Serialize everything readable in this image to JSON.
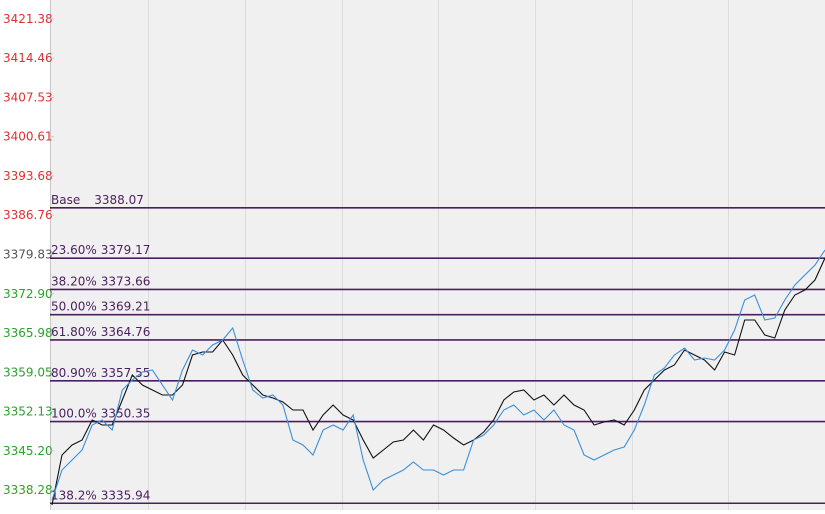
{
  "chart_data": {
    "type": "line",
    "ylim": [
      3334.75,
      3424.73
    ],
    "yticks": [
      3421.38,
      3414.46,
      3407.53,
      3400.61,
      3393.68,
      3386.76,
      3379.83,
      {
        "value": 3372.9,
        "label": "3372.90"
      },
      3365.98,
      3359.05,
      3352.13,
      {
        "value": 3345.2,
        "label": "3345.20"
      },
      3338.28
    ],
    "ytick_colors": [
      "#e03030",
      "#e03030",
      "#e03030",
      "#e03030",
      "#e03030",
      "#e03030",
      "#555555",
      "#2ca02c",
      "#2ca02c",
      "#2ca02c",
      "#2ca02c",
      "#2ca02c",
      "#2ca02c"
    ],
    "grid": true,
    "levels": [
      {
        "name": "Base",
        "value": 3388.07
      },
      {
        "name": "23.60%",
        "value": 3379.17
      },
      {
        "name": "38.20%",
        "value": 3373.66
      },
      {
        "name": "50.00%",
        "value": 3369.21
      },
      {
        "name": "61.80%",
        "value": 3364.76
      },
      {
        "name": "80.90%",
        "value": 3357.55
      },
      {
        "name": "100.0%",
        "value": 3350.35
      },
      {
        "name": "138.2%",
        "value": 3335.94
      }
    ],
    "level_color": "#4b1f5e",
    "series": [
      {
        "color": "#111111",
        "values": [
          3335.63,
          3344.45,
          3346.22,
          3347.1,
          3350.63,
          3349.75,
          3349.75,
          3354.16,
          3358.57,
          3356.8,
          3355.92,
          3355.04,
          3355.04,
          3356.8,
          3362.1,
          3362.63,
          3362.63,
          3364.74,
          3362.1,
          3358.57,
          3356.8,
          3355.04,
          3354.51,
          3353.81,
          3352.39,
          3352.39,
          3348.87,
          3351.51,
          3353.28,
          3351.51,
          3350.63,
          3347.1,
          3343.93,
          3345.34,
          3346.75,
          3347.1,
          3348.87,
          3347.1,
          3349.75,
          3348.87,
          3347.45,
          3346.22,
          3347.1,
          3348.51,
          3350.63,
          3354.16,
          3355.57,
          3355.92,
          3354.16,
          3355.04,
          3353.28,
          3355.04,
          3353.28,
          3352.39,
          3349.75,
          3350.28,
          3350.63,
          3349.75,
          3352.39,
          3355.92,
          3357.69,
          3359.45,
          3360.33,
          3362.98,
          3362.1,
          3361.22,
          3359.45,
          3362.63,
          3362.1,
          3368.27,
          3368.27,
          3365.63,
          3365.1,
          3370.04,
          3372.68,
          3373.57,
          3375.33,
          3379.21
        ]
      },
      {
        "color": "#3a8fd9",
        "values": [
          3336.51,
          3341.81,
          3343.57,
          3345.34,
          3349.75,
          3350.63,
          3348.87,
          3355.92,
          3357.69,
          3359.1,
          3359.45,
          3356.8,
          3354.16,
          3359.45,
          3362.98,
          3362.1,
          3363.86,
          3364.74,
          3366.86,
          3361.22,
          3355.92,
          3354.51,
          3355.04,
          3353.28,
          3347.1,
          3346.22,
          3344.45,
          3348.87,
          3349.75,
          3348.87,
          3351.51,
          3343.57,
          3338.28,
          3340.04,
          3340.93,
          3341.81,
          3343.22,
          3341.81,
          3341.81,
          3340.93,
          3341.81,
          3341.81,
          3347.1,
          3347.98,
          3349.75,
          3352.39,
          3353.28,
          3351.51,
          3352.39,
          3350.63,
          3352.39,
          3349.75,
          3348.87,
          3344.45,
          3343.57,
          3344.45,
          3345.34,
          3345.87,
          3348.87,
          3353.28,
          3358.57,
          3359.8,
          3362.1,
          3363.33,
          3361.22,
          3361.57,
          3361.22,
          3362.98,
          3366.51,
          3371.8,
          3372.68,
          3368.27,
          3368.63,
          3371.8,
          3374.45,
          3376.21,
          3377.98,
          3380.62
        ]
      }
    ]
  }
}
